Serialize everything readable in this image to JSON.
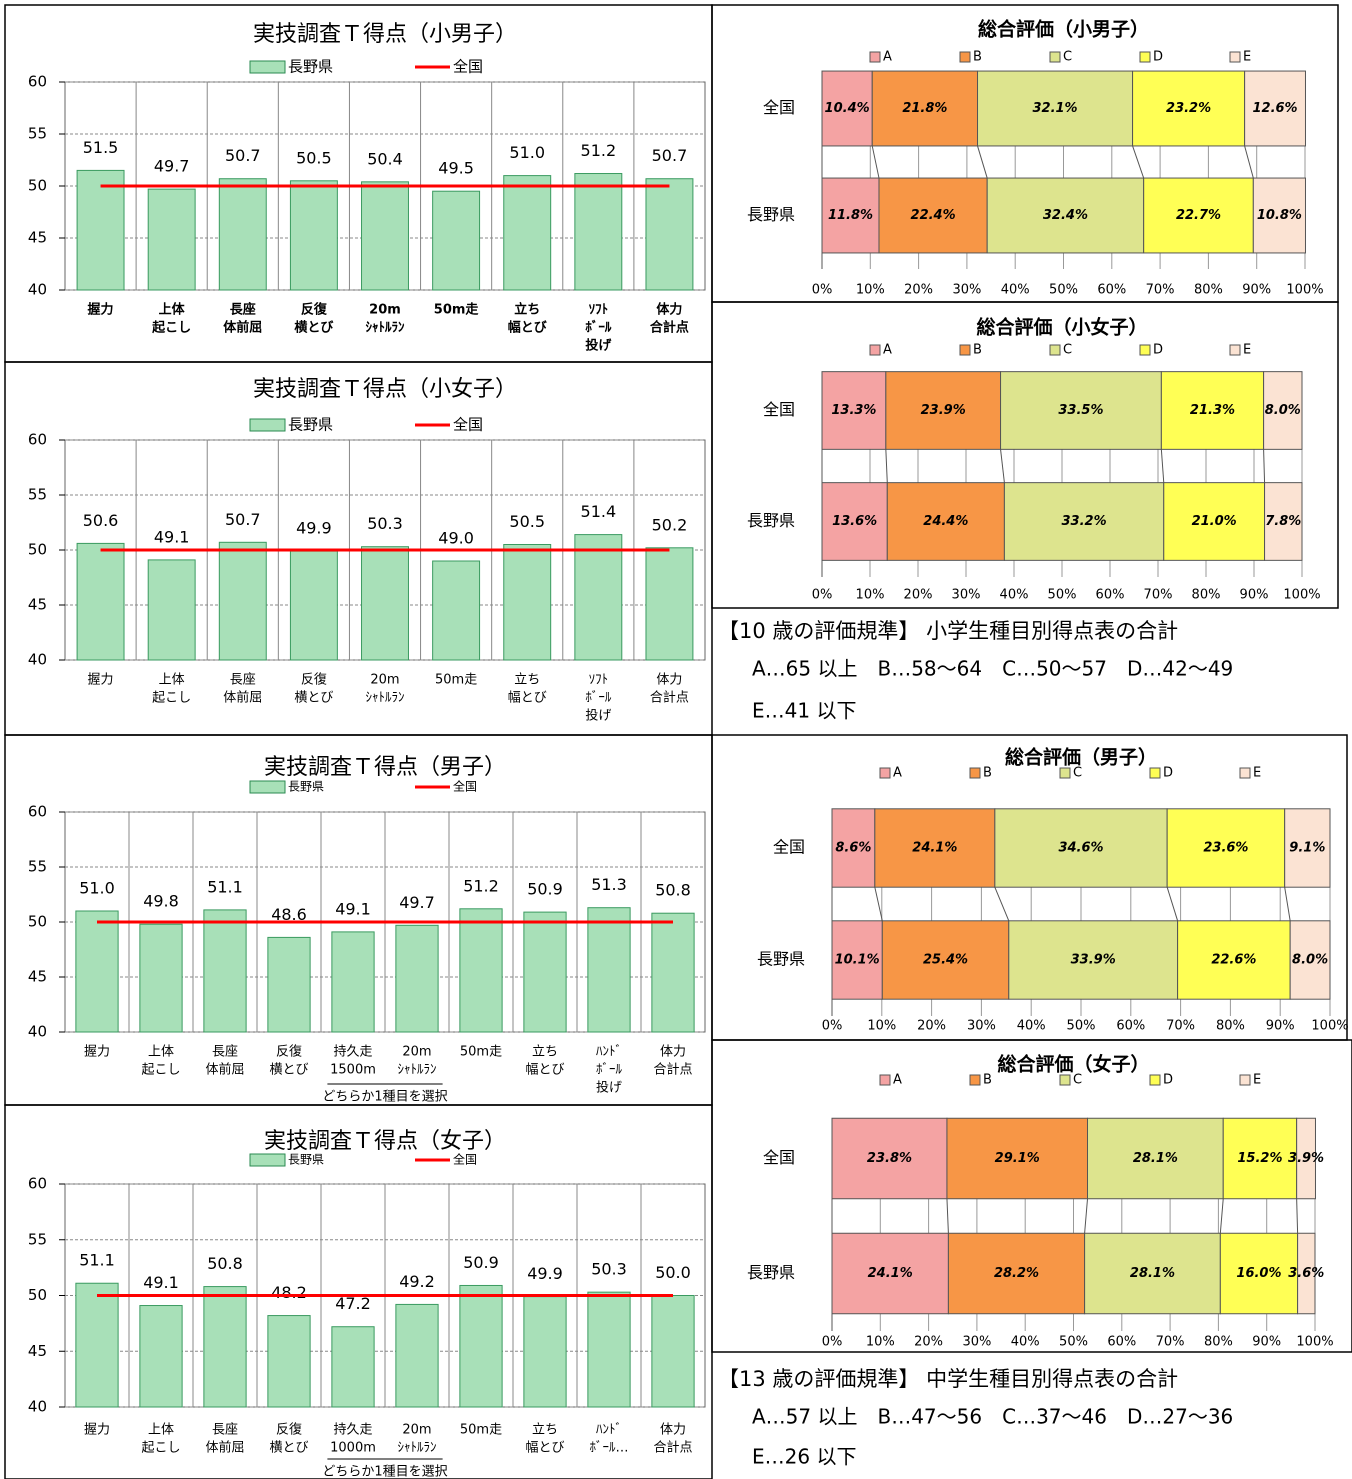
{
  "chart_data": [
    {
      "type": "bar",
      "title": "実技調査Ｔ得点（小男子）",
      "categories": [
        [
          "握力"
        ],
        [
          "上体",
          "起こし"
        ],
        [
          "長座",
          "体前屈"
        ],
        [
          "反復",
          "横とび"
        ],
        [
          "20m",
          "ｼｬﾄﾙﾗﾝ"
        ],
        [
          "50m走"
        ],
        [
          "立ち",
          "幅とび"
        ],
        [
          "ｿﾌﾄ",
          "ﾎﾞｰﾙ",
          "投げ"
        ],
        [
          "体力",
          "合計点"
        ]
      ],
      "series": [
        {
          "name": "長野県",
          "color": "#a8e0b8",
          "values": [
            51.5,
            49.7,
            50.7,
            50.5,
            50.4,
            49.5,
            51.0,
            51.2,
            50.7
          ],
          "value_labels": [
            "51.5",
            "49.7",
            "50.7",
            "50.5",
            "50.4",
            "49.5",
            "51.0",
            "51.2",
            "50.7"
          ]
        },
        {
          "name": "全国",
          "color": "#ff0000",
          "type": "line",
          "values": [
            50,
            50,
            50,
            50,
            50,
            50,
            50,
            50,
            50
          ]
        }
      ],
      "ylim": [
        40,
        60
      ],
      "yticks": [
        40,
        45,
        50,
        55,
        60
      ],
      "grid": true
    },
    {
      "type": "bar",
      "title": "実技調査Ｔ得点（小女子）",
      "categories": [
        [
          "握力"
        ],
        [
          "上体",
          "起こし"
        ],
        [
          "長座",
          "体前屈"
        ],
        [
          "反復",
          "横とび"
        ],
        [
          "20m",
          "ｼｬﾄﾙﾗﾝ"
        ],
        [
          "50m走"
        ],
        [
          "立ち",
          "幅とび"
        ],
        [
          "ｿﾌﾄ",
          "ﾎﾞｰﾙ",
          "投げ"
        ],
        [
          "体力",
          "合計点"
        ]
      ],
      "series": [
        {
          "name": "長野県",
          "color": "#a8e0b8",
          "values": [
            50.6,
            49.1,
            50.7,
            49.9,
            50.3,
            49.0,
            50.5,
            51.4,
            50.2
          ],
          "value_labels": [
            "50.6",
            "49.1",
            "50.7",
            "49.9",
            "50.3",
            "49.0",
            "50.5",
            "51.4",
            "50.2"
          ]
        },
        {
          "name": "全国",
          "color": "#ff0000",
          "type": "line",
          "values": [
            50,
            50,
            50,
            50,
            50,
            50,
            50,
            50,
            50
          ]
        }
      ],
      "ylim": [
        40,
        60
      ],
      "yticks": [
        40,
        45,
        50,
        55,
        60
      ],
      "grid": true
    },
    {
      "type": "bar",
      "title": "実技調査Ｔ得点（男子）",
      "annotation": "どちらか1種目を選択",
      "categories": [
        [
          "握力"
        ],
        [
          "上体",
          "起こし"
        ],
        [
          "長座",
          "体前屈"
        ],
        [
          "反復",
          "横とび"
        ],
        [
          "持久走",
          "1500m"
        ],
        [
          "20m",
          "ｼｬﾄﾙﾗﾝ"
        ],
        [
          "50m走"
        ],
        [
          "立ち",
          "幅とび"
        ],
        [
          "ﾊﾝﾄﾞ",
          "ﾎﾞｰﾙ",
          "投げ"
        ],
        [
          "体力",
          "合計点"
        ]
      ],
      "series": [
        {
          "name": "長野県",
          "color": "#a8e0b8",
          "values": [
            51.0,
            49.8,
            51.1,
            48.6,
            49.1,
            49.7,
            51.2,
            50.9,
            51.3,
            50.8
          ],
          "value_labels": [
            "51.0",
            "49.8",
            "51.1",
            "48.6",
            "49.1",
            "49.7",
            "51.2",
            "50.9",
            "51.3",
            "50.8"
          ]
        },
        {
          "name": "全国",
          "color": "#ff0000",
          "type": "line",
          "values": [
            50,
            50,
            50,
            50,
            50,
            50,
            50,
            50,
            50,
            50
          ]
        }
      ],
      "ylim": [
        40,
        60
      ],
      "yticks": [
        40,
        45,
        50,
        55,
        60
      ],
      "grid": true
    },
    {
      "type": "bar",
      "title": "実技調査Ｔ得点（女子）",
      "annotation": "どちらか1種目を選択",
      "categories": [
        [
          "握力"
        ],
        [
          "上体",
          "起こし"
        ],
        [
          "長座",
          "体前屈"
        ],
        [
          "反復",
          "横とび"
        ],
        [
          "持久走",
          "1000m"
        ],
        [
          "20m",
          "ｼｬﾄﾙﾗﾝ"
        ],
        [
          "50m走"
        ],
        [
          "立ち",
          "幅とび"
        ],
        [
          "ﾊﾝﾄﾞ",
          "ﾎﾞｰﾙ…"
        ],
        [
          "体力",
          "合計点"
        ]
      ],
      "series": [
        {
          "name": "長野県",
          "color": "#a8e0b8",
          "values": [
            51.1,
            49.1,
            50.8,
            48.2,
            47.2,
            49.2,
            50.9,
            49.9,
            50.3,
            50.0
          ],
          "value_labels": [
            "51.1",
            "49.1",
            "50.8",
            "48.2",
            "47.2",
            "49.2",
            "50.9",
            "49.9",
            "50.3",
            "50.0"
          ]
        },
        {
          "name": "全国",
          "color": "#ff0000",
          "type": "line",
          "values": [
            50,
            50,
            50,
            50,
            50,
            50,
            50,
            50,
            50,
            50
          ]
        }
      ],
      "ylim": [
        40,
        60
      ],
      "yticks": [
        40,
        45,
        50,
        55,
        60
      ],
      "grid": true
    },
    {
      "type": "stacked_barh",
      "title": "総合評価（小男子）",
      "categories": [
        "全国",
        "長野県"
      ],
      "series": [
        {
          "name": "A",
          "color": "#f4a3a3",
          "values": [
            10.4,
            11.8
          ],
          "value_labels": [
            "10.4%",
            "11.8%"
          ]
        },
        {
          "name": "B",
          "color": "#f79646",
          "values": [
            21.8,
            22.4
          ],
          "value_labels": [
            "21.8%",
            "22.4%"
          ]
        },
        {
          "name": "C",
          "color": "#dde48e",
          "values": [
            32.1,
            32.4
          ],
          "value_labels": [
            "32.1%",
            "32.4%"
          ]
        },
        {
          "name": "D",
          "color": "#ffff55",
          "values": [
            23.2,
            22.7
          ],
          "value_labels": [
            "23.2%",
            "22.7%"
          ]
        },
        {
          "name": "E",
          "color": "#fbe3d3",
          "values": [
            12.6,
            10.8
          ],
          "value_labels": [
            "12.6%",
            "10.8%"
          ]
        }
      ],
      "xlim": [
        0,
        100
      ],
      "xticks": [
        {
          "value": 0,
          "label": "0%"
        },
        {
          "value": 10,
          "label": "10%"
        },
        {
          "value": 20,
          "label": "20%"
        },
        {
          "value": 30,
          "label": "30%"
        },
        {
          "value": 40,
          "label": "40%"
        },
        {
          "value": 50,
          "label": "50%"
        },
        {
          "value": 60,
          "label": "60%"
        },
        {
          "value": 70,
          "label": "70%"
        },
        {
          "value": 80,
          "label": "80%"
        },
        {
          "value": 90,
          "label": "90%"
        },
        {
          "value": 100,
          "label": "100%"
        }
      ],
      "grid": true
    },
    {
      "type": "stacked_barh",
      "title": "総合評価（小女子）",
      "categories": [
        "全国",
        "長野県"
      ],
      "series": [
        {
          "name": "A",
          "color": "#f4a3a3",
          "values": [
            13.3,
            13.6
          ],
          "value_labels": [
            "13.3%",
            "13.6%"
          ]
        },
        {
          "name": "B",
          "color": "#f79646",
          "values": [
            23.9,
            24.4
          ],
          "value_labels": [
            "23.9%",
            "24.4%"
          ]
        },
        {
          "name": "C",
          "color": "#dde48e",
          "values": [
            33.5,
            33.2
          ],
          "value_labels": [
            "33.5%",
            "33.2%"
          ]
        },
        {
          "name": "D",
          "color": "#ffff55",
          "values": [
            21.3,
            21.0
          ],
          "value_labels": [
            "21.3%",
            "21.0%"
          ]
        },
        {
          "name": "E",
          "color": "#fbe3d3",
          "values": [
            8.0,
            7.8
          ],
          "value_labels": [
            "8.0%",
            "7.8%"
          ]
        }
      ],
      "xlim": [
        0,
        100
      ],
      "xticks": [
        {
          "value": 0,
          "label": "0%"
        },
        {
          "value": 10,
          "label": "10%"
        },
        {
          "value": 20,
          "label": "20%"
        },
        {
          "value": 30,
          "label": "30%"
        },
        {
          "value": 40,
          "label": "40%"
        },
        {
          "value": 50,
          "label": "50%"
        },
        {
          "value": 60,
          "label": "60%"
        },
        {
          "value": 70,
          "label": "70%"
        },
        {
          "value": 80,
          "label": "80%"
        },
        {
          "value": 90,
          "label": "90%"
        },
        {
          "value": 100,
          "label": "100%"
        }
      ],
      "grid": true
    },
    {
      "type": "stacked_barh",
      "title": "総合評価（男子）",
      "categories": [
        "全国",
        "長野県"
      ],
      "series": [
        {
          "name": "A",
          "color": "#f4a3a3",
          "values": [
            8.6,
            10.1
          ],
          "value_labels": [
            "8.6%",
            "10.1%"
          ]
        },
        {
          "name": "B",
          "color": "#f79646",
          "values": [
            24.1,
            25.4
          ],
          "value_labels": [
            "24.1%",
            "25.4%"
          ]
        },
        {
          "name": "C",
          "color": "#dde48e",
          "values": [
            34.6,
            33.9
          ],
          "value_labels": [
            "34.6%",
            "33.9%"
          ]
        },
        {
          "name": "D",
          "color": "#ffff55",
          "values": [
            23.6,
            22.6
          ],
          "value_labels": [
            "23.6%",
            "22.6%"
          ]
        },
        {
          "name": "E",
          "color": "#fbe3d3",
          "values": [
            9.1,
            8.0
          ],
          "value_labels": [
            "9.1%",
            "8.0%"
          ]
        }
      ],
      "xlim": [
        0,
        100
      ],
      "xticks": [
        {
          "value": 0,
          "label": "0%"
        },
        {
          "value": 10,
          "label": "10%"
        },
        {
          "value": 20,
          "label": "20%"
        },
        {
          "value": 30,
          "label": "30%"
        },
        {
          "value": 40,
          "label": "40%"
        },
        {
          "value": 50,
          "label": "50%"
        },
        {
          "value": 60,
          "label": "60%"
        },
        {
          "value": 70,
          "label": "70%"
        },
        {
          "value": 80,
          "label": "80%"
        },
        {
          "value": 90,
          "label": "90%"
        },
        {
          "value": 100,
          "label": "100%"
        }
      ],
      "grid": true
    },
    {
      "type": "stacked_barh",
      "title": "総合評価（女子）",
      "categories": [
        "全国",
        "長野県"
      ],
      "series": [
        {
          "name": "A",
          "color": "#f4a3a3",
          "values": [
            23.8,
            24.1
          ],
          "value_labels": [
            "23.8%",
            "24.1%"
          ]
        },
        {
          "name": "B",
          "color": "#f79646",
          "values": [
            29.1,
            28.2
          ],
          "value_labels": [
            "29.1%",
            "28.2%"
          ]
        },
        {
          "name": "C",
          "color": "#dde48e",
          "values": [
            28.1,
            28.1
          ],
          "value_labels": [
            "28.1%",
            "28.1%"
          ]
        },
        {
          "name": "D",
          "color": "#ffff55",
          "values": [
            15.2,
            16.0
          ],
          "value_labels": [
            "15.2%",
            "16.0%"
          ]
        },
        {
          "name": "E",
          "color": "#fbe3d3",
          "values": [
            3.9,
            3.6
          ],
          "value_labels": [
            "3.9%",
            "3.6%"
          ]
        }
      ],
      "xlim": [
        0,
        100
      ],
      "xticks": [
        {
          "value": 0,
          "label": "0%"
        },
        {
          "value": 10,
          "label": "10%"
        },
        {
          "value": 20,
          "label": "20%"
        },
        {
          "value": 30,
          "label": "30%"
        },
        {
          "value": 40,
          "label": "40%"
        },
        {
          "value": 50,
          "label": "50%"
        },
        {
          "value": 60,
          "label": "60%"
        },
        {
          "value": 70,
          "label": "70%"
        },
        {
          "value": 80,
          "label": "80%"
        },
        {
          "value": 90,
          "label": "90%"
        },
        {
          "value": 100,
          "label": "100%"
        }
      ],
      "grid": true
    }
  ],
  "notes": [
    {
      "heading": "【10 歳の評価規準】 小学生種目別得点表の合計",
      "lines": [
        "A…65 以上　B…58〜64　C…50〜57　D…42〜49",
        "E…41 以下"
      ]
    },
    {
      "heading": "【13 歳の評価規準】 中学生種目別得点表の合計",
      "lines": [
        "A…57 以上　B…47〜56　C…37〜46　D…27〜36",
        "E…26 以下"
      ]
    }
  ]
}
